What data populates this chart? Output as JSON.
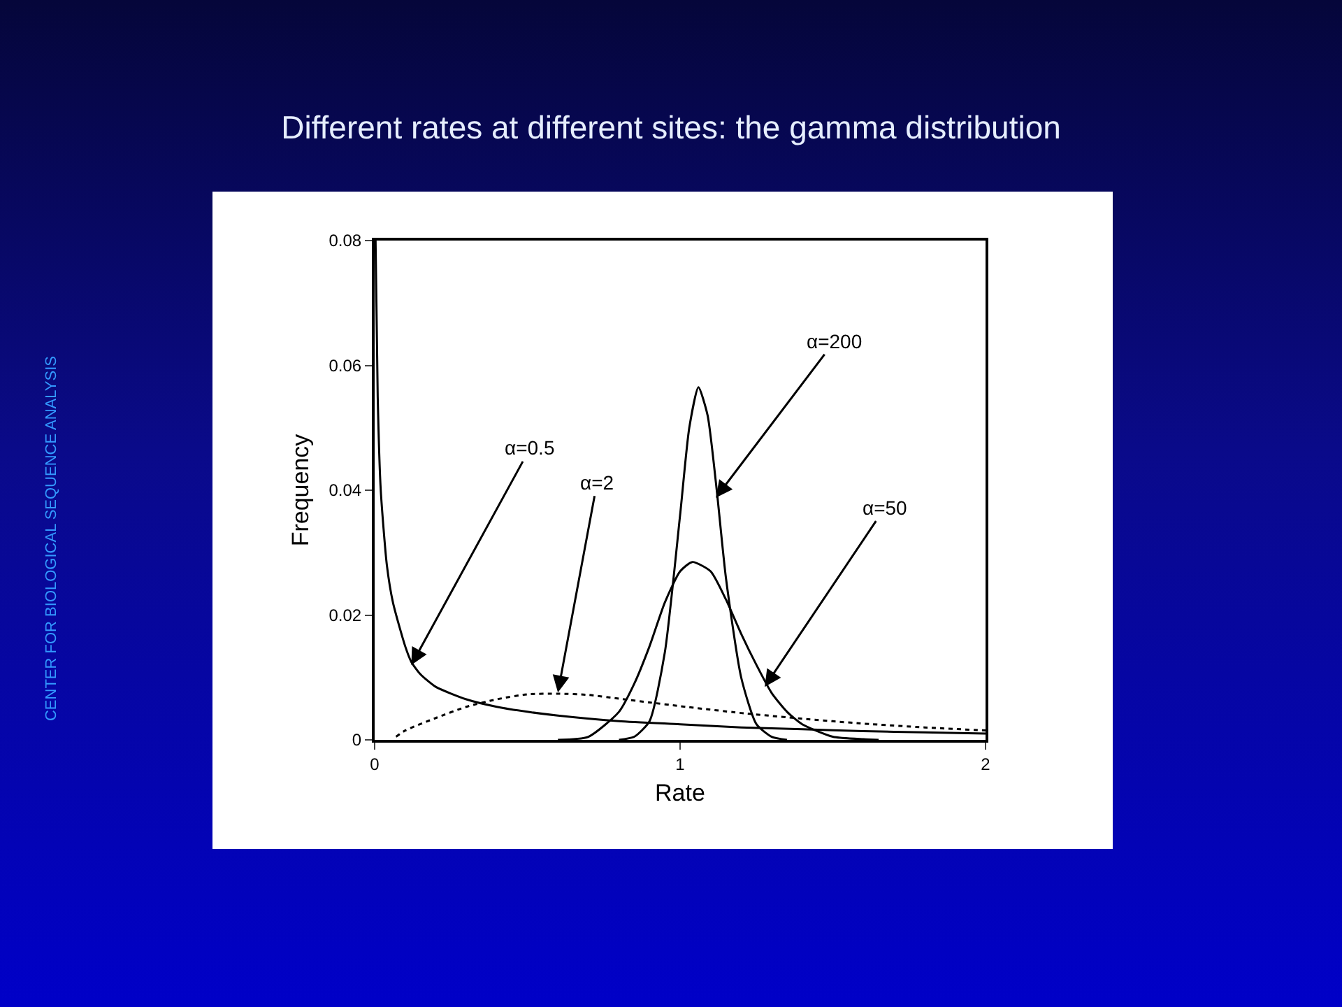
{
  "chart_data": {
    "type": "line",
    "title": "Different rates at different sites: the gamma distribution",
    "xlabel": "Rate",
    "ylabel": "Frequency",
    "xlim": [
      0,
      2
    ],
    "xticks": [
      0,
      1,
      2
    ],
    "ylim": [
      0,
      0.08
    ],
    "yticks": [
      0,
      0.02,
      0.04,
      0.06,
      0.08
    ],
    "grid": false,
    "marker": "none",
    "series": [
      {
        "color": "#000000",
        "line_style": "solid",
        "x": [
          0.003,
          0.01,
          0.02,
          0.04,
          0.06,
          0.1,
          0.12,
          0.15,
          0.2,
          0.3,
          0.4,
          0.5,
          0.6,
          0.8,
          1,
          1.2,
          1.4,
          1.6,
          1.8,
          2
        ],
        "values": [
          0.08,
          0.055,
          0.04,
          0.028,
          0.022,
          0.015,
          0.0125,
          0.0105,
          0.0085,
          0.0065,
          0.0053,
          0.0045,
          0.0039,
          0.003,
          0.0025,
          0.002,
          0.0017,
          0.0014,
          0.0012,
          0.001
        ]
      },
      {
        "color": "#000000",
        "line_style": "dotted",
        "x": [
          0.07,
          0.1,
          0.2,
          0.3,
          0.4,
          0.5,
          0.6,
          0.7,
          0.8,
          0.9,
          1,
          1.2,
          1.4,
          1.6,
          1.8,
          2
        ],
        "values": [
          0.0005,
          0.0015,
          0.0035,
          0.0053,
          0.0065,
          0.0073,
          0.0074,
          0.0072,
          0.0066,
          0.006,
          0.0054,
          0.0043,
          0.0034,
          0.0026,
          0.002,
          0.0015
        ]
      },
      {
        "color": "#000000",
        "line_style": "solid",
        "x": [
          0.6,
          0.7,
          0.8,
          0.85,
          0.9,
          0.95,
          1,
          1.04,
          1.1,
          1.15,
          1.2,
          1.25,
          1.3,
          1.35,
          1.4,
          1.5,
          1.6,
          1.65
        ],
        "values": [
          0,
          0.0005,
          0.0045,
          0.009,
          0.015,
          0.022,
          0.027,
          0.0285,
          0.027,
          0.0225,
          0.017,
          0.012,
          0.0075,
          0.0045,
          0.0025,
          0.0005,
          0.0001,
          0
        ]
      },
      {
        "color": "#000000",
        "line_style": "solid",
        "x": [
          0.8,
          0.85,
          0.9,
          0.95,
          1,
          1.03,
          1.06,
          1.09,
          1.12,
          1.15,
          1.2,
          1.25,
          1.3,
          1.35
        ],
        "values": [
          0,
          0.0005,
          0.003,
          0.014,
          0.036,
          0.05,
          0.0565,
          0.052,
          0.04,
          0.026,
          0.01,
          0.0025,
          0.0005,
          0
        ]
      }
    ],
    "annotations": [
      "CENTER FOR BIOLOGICAL SEQUENCE ANALYSIS",
      {
        "text": "α=0.5",
        "x": 0.12,
        "y": 0.012
      },
      {
        "text": "α=2",
        "x": 0.6,
        "y": 0.0076
      },
      {
        "text": "α=200",
        "x": 1.117,
        "y": 0.0388
      },
      {
        "text": "α=50",
        "x": 1.277,
        "y": 0.0085
      }
    ]
  }
}
